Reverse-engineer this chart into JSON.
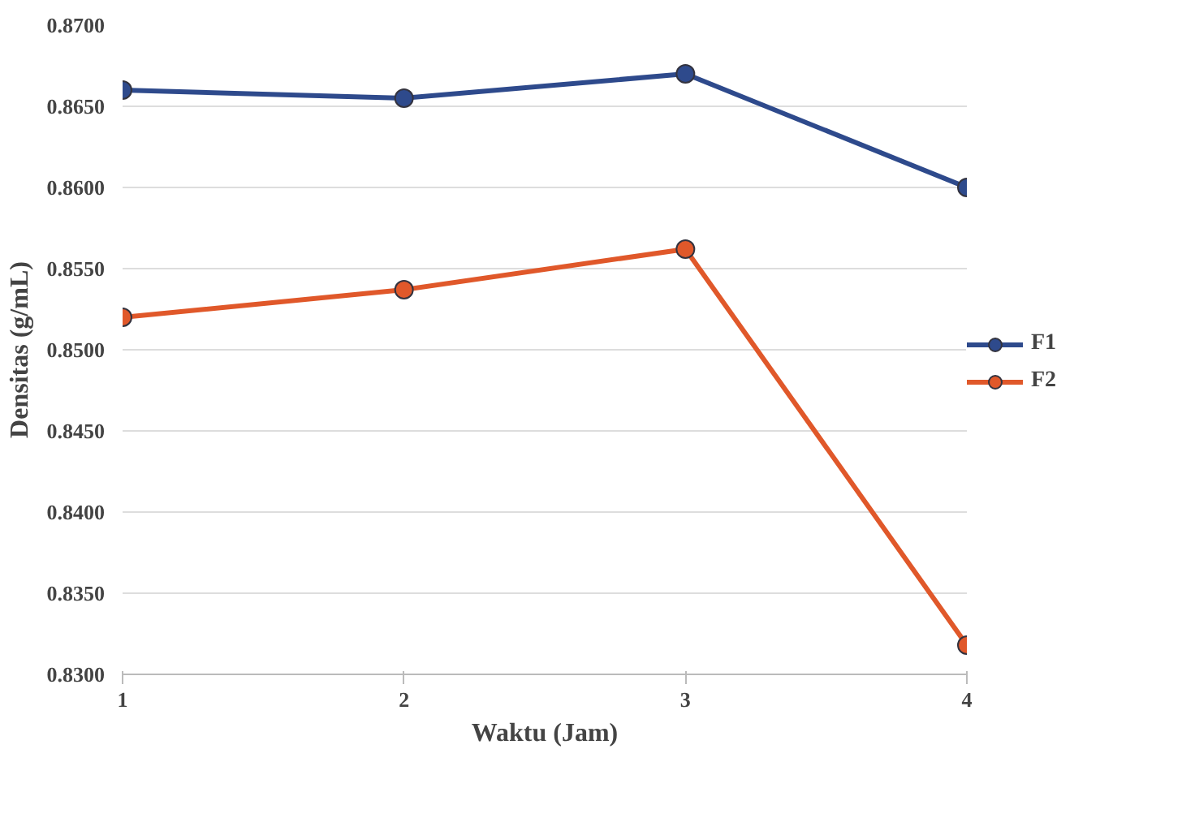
{
  "chart_data": {
    "type": "line",
    "xlabel": "Waktu (Jam)",
    "ylabel": "Densitas (g/mL)",
    "x": [
      1,
      2,
      3,
      4
    ],
    "series": [
      {
        "name": "F1",
        "color": "#2e4a8c",
        "values": [
          0.866,
          0.8655,
          0.867,
          0.86
        ]
      },
      {
        "name": "F2",
        "color": "#e0582a",
        "values": [
          0.852,
          0.8537,
          0.8562,
          0.8318
        ]
      }
    ],
    "xlim": [
      1,
      4
    ],
    "xticks": [
      1,
      2,
      3,
      4
    ],
    "ylim": [
      0.83,
      0.87
    ],
    "yticks": [
      {
        "value": 0.83,
        "label": "0.8300"
      },
      {
        "value": 0.835,
        "label": "0.8350"
      },
      {
        "value": 0.84,
        "label": "0.8400"
      },
      {
        "value": 0.845,
        "label": "0.8450"
      },
      {
        "value": 0.85,
        "label": "0.8500"
      },
      {
        "value": 0.855,
        "label": "0.8550"
      },
      {
        "value": 0.86,
        "label": "0.8600"
      },
      {
        "value": 0.865,
        "label": "0.8650"
      },
      {
        "value": 0.87,
        "label": "0.8700"
      }
    ],
    "grid": "y",
    "legend": "right",
    "marker": "circle",
    "line_style": "solid"
  }
}
